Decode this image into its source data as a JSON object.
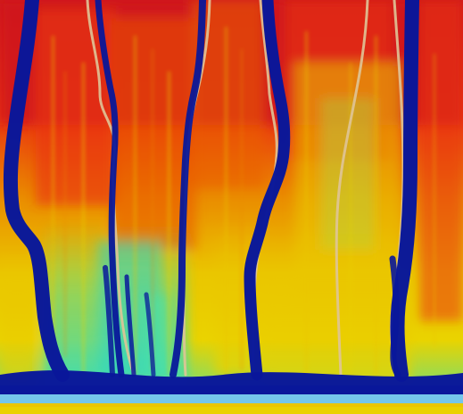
{
  "colors": {
    "red": "#e31a1c",
    "orange": "#ff6a00",
    "yellow": "#ffd800",
    "cyan": "#3ff0c8",
    "navy": "#0a1aa8",
    "light_blue": "#7fd8ff"
  }
}
